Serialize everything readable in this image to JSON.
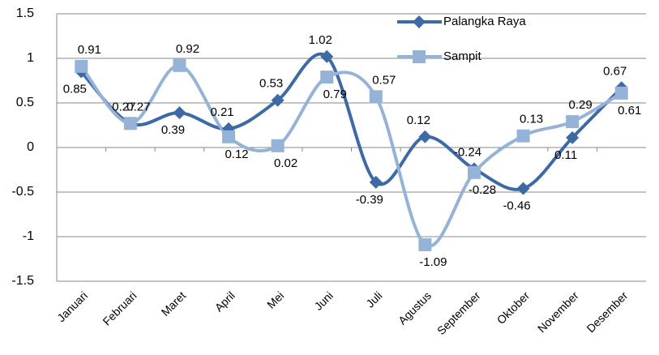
{
  "chart_data": {
    "type": "line",
    "categories": [
      "Januari",
      "Februari",
      "Maret",
      "April",
      "Mei",
      "Juni",
      "Juli",
      "Agustus",
      "September",
      "Oktober",
      "November",
      "Desember"
    ],
    "series": [
      {
        "name": "Palangka Raya",
        "color": "#3d6aa5",
        "marker": "diamond",
        "values": [
          0.85,
          0.27,
          0.39,
          0.21,
          0.53,
          1.02,
          -0.39,
          0.12,
          -0.24,
          -0.46,
          0.11,
          0.67
        ]
      },
      {
        "name": "Sampit",
        "color": "#95b3d7",
        "marker": "square",
        "values": [
          0.91,
          0.27,
          0.92,
          0.12,
          0.02,
          0.79,
          0.57,
          -1.09,
          -0.28,
          0.13,
          0.29,
          0.61
        ]
      }
    ],
    "ylim": [
      -1.5,
      1.5
    ],
    "yticks": [
      -1.5,
      -1,
      -0.5,
      0,
      0.5,
      1,
      1.5
    ],
    "grid": true,
    "smooth": true,
    "legend": "upper right"
  }
}
